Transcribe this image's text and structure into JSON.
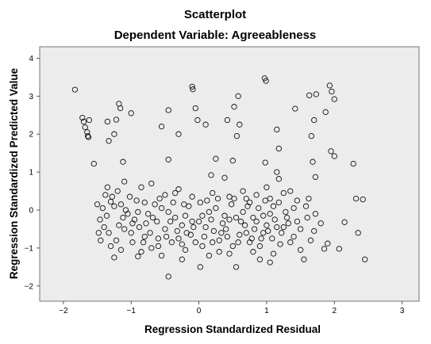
{
  "chart_data": {
    "type": "scatter",
    "title": "Scatterplot",
    "subtitle": "Dependent Variable: Agreeableness",
    "xlabel": "Regression Standardized Residual",
    "ylabel": "Regression Standardized Predicted Value",
    "xlim": [
      -2.35,
      3.25
    ],
    "ylim": [
      -2.4,
      4.3
    ],
    "xticks": [
      -2,
      -1,
      0,
      1,
      2,
      3
    ],
    "yticks": [
      -2,
      -1,
      0,
      1,
      2,
      3,
      4
    ],
    "grid": false,
    "plot_background": "#ececec",
    "marker": "open-circle",
    "points": [
      [
        -1.83,
        3.17
      ],
      [
        -1.72,
        2.43
      ],
      [
        -1.7,
        2.33
      ],
      [
        -1.68,
        2.18
      ],
      [
        -1.65,
        2.05
      ],
      [
        -1.64,
        1.95
      ],
      [
        -1.63,
        1.92
      ],
      [
        -1.62,
        2.37
      ],
      [
        -1.55,
        1.22
      ],
      [
        -1.35,
        2.33
      ],
      [
        -1.33,
        1.82
      ],
      [
        -1.25,
        2.0
      ],
      [
        -1.22,
        2.38
      ],
      [
        -1.18,
        2.8
      ],
      [
        -1.16,
        2.68
      ],
      [
        -1.12,
        1.27
      ],
      [
        -1.0,
        2.55
      ],
      [
        -0.55,
        2.2
      ],
      [
        -0.45,
        2.63
      ],
      [
        -0.3,
        2.0
      ],
      [
        -0.1,
        3.25
      ],
      [
        -0.09,
        3.18
      ],
      [
        -0.05,
        2.68
      ],
      [
        -0.02,
        2.37
      ],
      [
        0.1,
        2.25
      ],
      [
        0.42,
        2.37
      ],
      [
        0.52,
        2.72
      ],
      [
        0.56,
        1.95
      ],
      [
        0.58,
        3.0
      ],
      [
        0.6,
        2.25
      ],
      [
        0.97,
        3.47
      ],
      [
        0.99,
        3.4
      ],
      [
        1.15,
        2.12
      ],
      [
        1.18,
        1.62
      ],
      [
        1.42,
        2.67
      ],
      [
        1.63,
        3.02
      ],
      [
        1.7,
        2.37
      ],
      [
        1.73,
        3.05
      ],
      [
        1.87,
        2.58
      ],
      [
        1.93,
        3.28
      ],
      [
        1.96,
        3.12
      ],
      [
        2.0,
        2.92
      ],
      [
        1.66,
        1.95
      ],
      [
        1.68,
        1.27
      ],
      [
        1.72,
        0.87
      ],
      [
        1.95,
        1.55
      ],
      [
        2.0,
        1.42
      ],
      [
        2.28,
        1.22
      ],
      [
        0.5,
        1.3
      ],
      [
        0.25,
        1.35
      ],
      [
        -0.45,
        1.33
      ],
      [
        0.98,
        1.25
      ],
      [
        0.18,
        0.92
      ],
      [
        0.38,
        0.85
      ],
      [
        1.15,
        1.0
      ],
      [
        1.18,
        0.82
      ],
      [
        2.32,
        0.3
      ],
      [
        2.42,
        0.28
      ],
      [
        2.15,
        -0.32
      ],
      [
        2.35,
        -0.6
      ],
      [
        2.07,
        -1.02
      ],
      [
        2.45,
        -1.3
      ],
      [
        1.85,
        -1.02
      ],
      [
        1.9,
        -0.88
      ],
      [
        -0.45,
        -1.75
      ],
      [
        -0.25,
        -1.3
      ],
      [
        0.02,
        -1.5
      ],
      [
        0.55,
        -1.5
      ],
      [
        0.9,
        -1.3
      ],
      [
        1.05,
        -1.38
      ],
      [
        1.55,
        -1.3
      ],
      [
        -0.9,
        -1.22
      ],
      [
        -1.25,
        -1.25
      ],
      [
        -1.45,
        -0.8
      ],
      [
        -1.4,
        -0.45
      ],
      [
        -1.3,
        0.22
      ],
      [
        -1.2,
        0.5
      ],
      [
        -1.1,
        0.75
      ],
      [
        -0.85,
        0.6
      ],
      [
        -0.7,
        0.7
      ],
      [
        -0.5,
        0.4
      ],
      [
        -0.3,
        0.55
      ],
      [
        -0.1,
        0.35
      ],
      [
        0.2,
        0.45
      ],
      [
        0.45,
        0.35
      ],
      [
        0.65,
        0.5
      ],
      [
        0.85,
        0.4
      ],
      [
        1.05,
        0.3
      ],
      [
        1.25,
        0.45
      ],
      [
        1.45,
        0.25
      ],
      [
        1.6,
        -0.2
      ],
      [
        1.7,
        -0.55
      ],
      [
        1.8,
        -0.35
      ],
      [
        1.4,
        -0.7
      ],
      [
        1.2,
        -0.9
      ],
      [
        0.95,
        -0.6
      ],
      [
        0.75,
        -0.85
      ],
      [
        0.5,
        -0.95
      ],
      [
        0.3,
        -1.1
      ],
      [
        0.05,
        -0.95
      ],
      [
        -0.2,
        -1.05
      ],
      [
        -0.4,
        -0.85
      ],
      [
        -0.6,
        -0.95
      ],
      [
        -0.8,
        -0.7
      ],
      [
        -1.0,
        -0.6
      ],
      [
        -1.18,
        -0.4
      ],
      [
        -0.95,
        -0.25
      ],
      [
        -0.75,
        -0.1
      ],
      [
        -0.55,
        0.05
      ],
      [
        -0.35,
        -0.2
      ],
      [
        -0.15,
        0.1
      ],
      [
        0.05,
        -0.15
      ],
      [
        0.25,
        0.05
      ],
      [
        0.45,
        -0.25
      ],
      [
        0.65,
        -0.05
      ],
      [
        0.85,
        -0.3
      ],
      [
        1.05,
        -0.1
      ],
      [
        1.25,
        -0.45
      ],
      [
        1.4,
        0.05
      ],
      [
        -1.35,
        0.6
      ],
      [
        -1.28,
        0.35
      ],
      [
        -1.15,
        0.15
      ],
      [
        -1.05,
        -0.1
      ],
      [
        -0.92,
        0.25
      ],
      [
        -0.78,
        -0.35
      ],
      [
        -0.65,
        0.15
      ],
      [
        -0.5,
        -0.5
      ],
      [
        -0.38,
        0.2
      ],
      [
        -0.25,
        -0.4
      ],
      [
        -0.12,
        -0.65
      ],
      [
        0.0,
        -0.3
      ],
      [
        0.12,
        0.25
      ],
      [
        0.22,
        -0.55
      ],
      [
        0.35,
        -0.35
      ],
      [
        0.48,
        0.15
      ],
      [
        0.6,
        -0.65
      ],
      [
        0.72,
        0.1
      ],
      [
        0.82,
        -0.5
      ],
      [
        0.95,
        -0.15
      ],
      [
        1.08,
        -0.75
      ],
      [
        1.18,
        0.2
      ],
      [
        1.3,
        -0.2
      ],
      [
        1.5,
        -0.5
      ],
      [
        1.58,
        0.1
      ],
      [
        -1.42,
        0.05
      ],
      [
        -1.33,
        -0.6
      ],
      [
        -1.22,
        -0.8
      ],
      [
        -1.1,
        -0.5
      ],
      [
        -0.98,
        -0.85
      ],
      [
        -0.88,
        -0.45
      ],
      [
        -0.72,
        -0.6
      ],
      [
        -0.62,
        -0.3
      ],
      [
        -0.48,
        -0.7
      ],
      [
        -0.32,
        -0.55
      ],
      [
        -0.2,
        -0.15
      ],
      [
        -0.08,
        -0.45
      ],
      [
        0.08,
        -0.7
      ],
      [
        0.18,
        -0.25
      ],
      [
        0.3,
        -0.8
      ],
      [
        0.4,
        -0.5
      ],
      [
        0.55,
        -0.2
      ],
      [
        0.68,
        -0.4
      ],
      [
        0.78,
        -0.75
      ],
      [
        0.9,
        -0.95
      ],
      [
        1.0,
        -0.4
      ],
      [
        1.12,
        -0.25
      ],
      [
        1.22,
        -0.6
      ],
      [
        1.35,
        -0.85
      ],
      [
        -1.38,
        0.4
      ],
      [
        -1.25,
        0.1
      ],
      [
        -1.12,
        -0.2
      ],
      [
        -1.02,
        0.35
      ],
      [
        -0.9,
        -0.05
      ],
      [
        -0.8,
        0.2
      ],
      [
        -0.68,
        -0.2
      ],
      [
        -0.58,
        0.3
      ],
      [
        -0.45,
        -0.05
      ],
      [
        -0.35,
        0.45
      ],
      [
        -0.22,
        0.15
      ],
      [
        -0.1,
        -0.3
      ],
      [
        0.02,
        0.2
      ],
      [
        0.15,
        -0.05
      ],
      [
        0.28,
        0.3
      ],
      [
        0.38,
        -0.15
      ],
      [
        0.52,
        0.3
      ],
      [
        0.62,
        -0.3
      ],
      [
        0.75,
        0.2
      ],
      [
        0.88,
        0.05
      ],
      [
        0.98,
        0.25
      ],
      [
        1.1,
        0.1
      ],
      [
        1.28,
        -0.05
      ],
      [
        1.45,
        -0.3
      ],
      [
        -1.3,
        -0.95
      ],
      [
        -1.15,
        -1.05
      ],
      [
        -0.85,
        -1.1
      ],
      [
        -0.55,
        -1.2
      ],
      [
        -0.25,
        -0.9
      ],
      [
        0.15,
        -1.2
      ],
      [
        0.45,
        -1.15
      ],
      [
        0.8,
        -1.1
      ],
      [
        1.1,
        -1.15
      ],
      [
        1.5,
        -1.05
      ],
      [
        1.65,
        -0.8
      ],
      [
        1.72,
        -0.1
      ],
      [
        1.62,
        0.3
      ],
      [
        1.35,
        0.5
      ],
      [
        1.0,
        0.6
      ],
      [
        0.7,
        0.3
      ],
      [
        -1.5,
        0.15
      ],
      [
        -1.46,
        -0.25
      ],
      [
        -1.48,
        -0.6
      ],
      [
        -1.36,
        -0.15
      ],
      [
        -1.08,
        0.0
      ],
      [
        -0.98,
        -0.35
      ],
      [
        -0.82,
        -0.85
      ],
      [
        -0.7,
        -1.0
      ],
      [
        -0.6,
        -0.75
      ],
      [
        -0.42,
        -0.3
      ],
      [
        -0.3,
        -0.75
      ],
      [
        -0.18,
        -0.6
      ],
      [
        -0.05,
        -0.85
      ],
      [
        0.1,
        -0.45
      ],
      [
        0.2,
        -0.85
      ],
      [
        0.33,
        -0.6
      ],
      [
        0.42,
        -0.7
      ],
      [
        0.58,
        -0.85
      ],
      [
        0.7,
        -0.6
      ],
      [
        0.8,
        -0.2
      ],
      [
        0.92,
        -0.75
      ],
      [
        1.02,
        -0.55
      ],
      [
        1.15,
        -0.45
      ],
      [
        1.32,
        -0.35
      ]
    ]
  }
}
